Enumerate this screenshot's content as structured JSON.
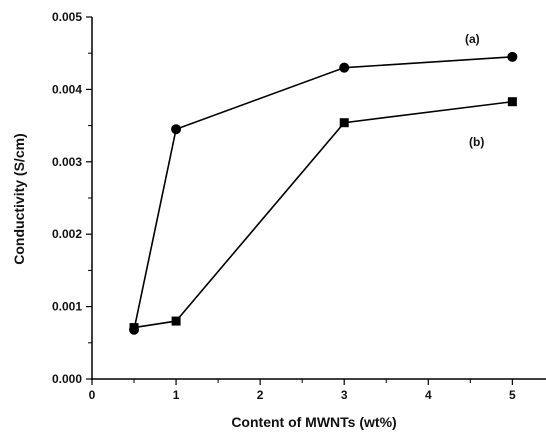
{
  "chart_data": {
    "type": "line",
    "title": "",
    "xlabel": "Content of MWNTs (wt%)",
    "ylabel": "Conductivity (S/cm)",
    "xlim": [
      0,
      5.4
    ],
    "ylim": [
      0,
      0.005
    ],
    "xticks": [
      "0",
      "1",
      "2",
      "3",
      "4",
      "5"
    ],
    "yticks": [
      "0.000",
      "0.001",
      "0.002",
      "0.003",
      "0.004",
      "0.005"
    ],
    "grid": false,
    "legend": "none",
    "series": [
      {
        "name": "(a)",
        "marker": "circle",
        "color": "#000000",
        "x": [
          0.5,
          1,
          3,
          5
        ],
        "y": [
          0.00068,
          0.00345,
          0.0043,
          0.00445
        ]
      },
      {
        "name": "(b)",
        "marker": "square",
        "color": "#000000",
        "x": [
          0.5,
          1,
          3,
          5
        ],
        "y": [
          0.00071,
          0.0008,
          0.00354,
          0.00383
        ]
      }
    ]
  }
}
